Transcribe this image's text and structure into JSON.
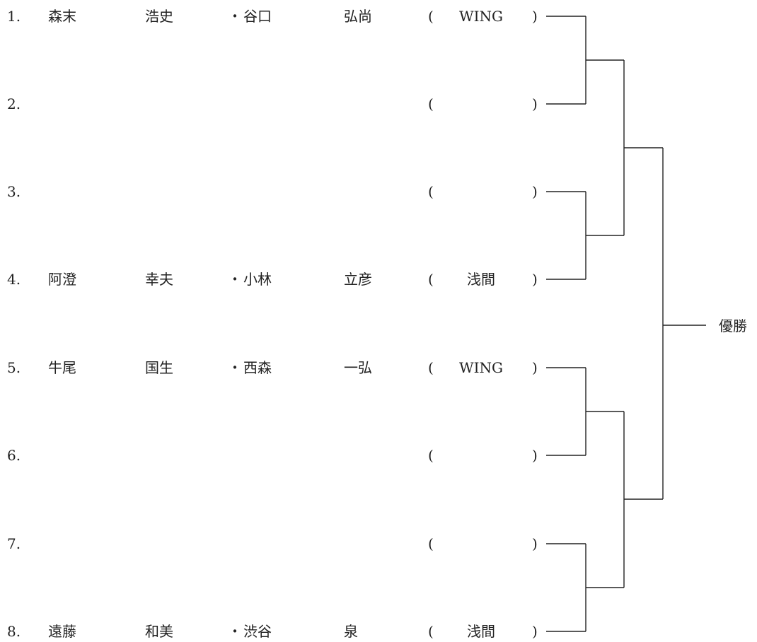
{
  "entries": [
    {
      "no": "1.",
      "p1_surname": "森末",
      "p1_given": "浩史",
      "sep": "・",
      "p2_surname": "谷口",
      "p2_given": "弘尚",
      "open": "(",
      "club": "WING",
      "close": ")"
    },
    {
      "no": "2.",
      "p1_surname": "",
      "p1_given": "",
      "sep": "",
      "p2_surname": "",
      "p2_given": "",
      "open": "(",
      "club": "",
      "close": ")"
    },
    {
      "no": "3.",
      "p1_surname": "",
      "p1_given": "",
      "sep": "",
      "p2_surname": "",
      "p2_given": "",
      "open": "(",
      "club": "",
      "close": ")"
    },
    {
      "no": "4.",
      "p1_surname": "阿澄",
      "p1_given": "幸夫",
      "sep": "・",
      "p2_surname": "小林",
      "p2_given": "立彦",
      "open": "(",
      "club": "浅間",
      "close": ")"
    },
    {
      "no": "5.",
      "p1_surname": "牛尾",
      "p1_given": "国生",
      "sep": "・",
      "p2_surname": "西森",
      "p2_given": "一弘",
      "open": "(",
      "club": "WING",
      "close": ")"
    },
    {
      "no": "6.",
      "p1_surname": "",
      "p1_given": "",
      "sep": "",
      "p2_surname": "",
      "p2_given": "",
      "open": "(",
      "club": "",
      "close": ")"
    },
    {
      "no": "7.",
      "p1_surname": "",
      "p1_given": "",
      "sep": "",
      "p2_surname": "",
      "p2_given": "",
      "open": "(",
      "club": "",
      "close": ")"
    },
    {
      "no": "8.",
      "p1_surname": "遠藤",
      "p1_given": "和美",
      "sep": "・",
      "p2_surname": "渋谷",
      "p2_given": "泉",
      "open": "(",
      "club": "浅間",
      "close": ")"
    }
  ],
  "winner_label": "優勝"
}
